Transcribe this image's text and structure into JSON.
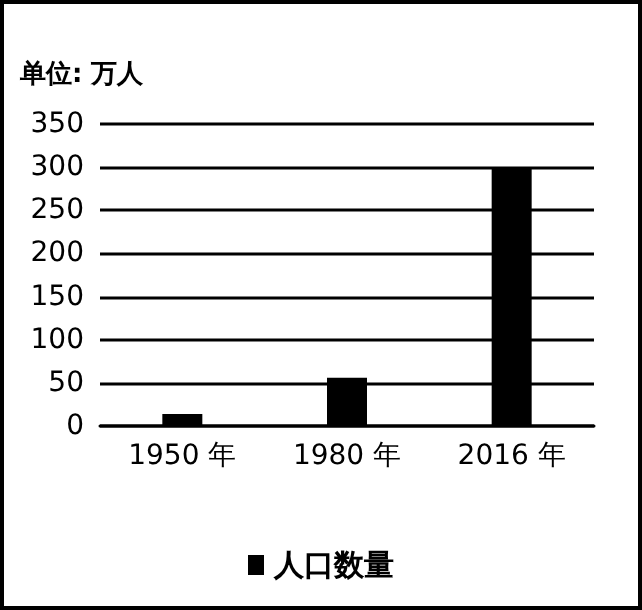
{
  "chart_data": {
    "type": "bar",
    "ylabel": "单位: 万人",
    "categories": [
      "1950 年",
      "1980 年",
      "2016 年"
    ],
    "series": [
      {
        "name": "人口数量",
        "color": "#000000",
        "values": [
          14,
          56,
          300
        ]
      }
    ],
    "ylim": [
      0,
      350
    ],
    "yticks": [
      0,
      50,
      100,
      150,
      200,
      250,
      300,
      350
    ],
    "grid": "y",
    "legend": "bottom"
  }
}
